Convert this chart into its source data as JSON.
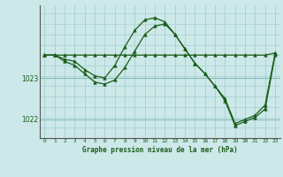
{
  "title": "Graphe pression niveau de la mer (hPa)",
  "bg_color": "#cce8e8",
  "grid_color_v": "#aad4d4",
  "grid_color_h": "#aad4d4",
  "line_color": "#1a5c1a",
  "marker_color": "#1a5c1a",
  "xlim": [
    -0.5,
    23.5
  ],
  "ylim": [
    1021.55,
    1024.75
  ],
  "yticks": [
    1022,
    1023
  ],
  "xticks": [
    0,
    1,
    2,
    3,
    4,
    5,
    6,
    7,
    8,
    9,
    10,
    11,
    12,
    13,
    14,
    15,
    16,
    17,
    18,
    19,
    20,
    21,
    22,
    23
  ],
  "line1_x": [
    0,
    1,
    2,
    3,
    4,
    5,
    6,
    7,
    8,
    9,
    10,
    11,
    12,
    13,
    14,
    15,
    16,
    17,
    18,
    19,
    20,
    21,
    22,
    23
  ],
  "line1_y": [
    1023.55,
    1023.55,
    1023.55,
    1023.55,
    1023.55,
    1023.55,
    1023.55,
    1023.55,
    1023.55,
    1023.55,
    1023.55,
    1023.55,
    1023.55,
    1023.55,
    1023.55,
    1023.55,
    1023.55,
    1023.55,
    1023.55,
    1023.55,
    1023.55,
    1023.55,
    1023.55,
    1023.6
  ],
  "line2_x": [
    0,
    1,
    2,
    3,
    4,
    5,
    6,
    7,
    8,
    9,
    10,
    11,
    12,
    13,
    14,
    15,
    16,
    17,
    18,
    19,
    20,
    21,
    22,
    23
  ],
  "line2_y": [
    1023.55,
    1023.55,
    1023.45,
    1023.4,
    1023.2,
    1023.05,
    1023.0,
    1023.3,
    1023.75,
    1024.15,
    1024.4,
    1024.45,
    1024.35,
    1024.05,
    1023.7,
    1023.35,
    1023.1,
    1022.8,
    1022.5,
    1021.9,
    1022.0,
    1022.1,
    1022.35,
    1023.6
  ],
  "line3_x": [
    0,
    1,
    2,
    3,
    4,
    5,
    6,
    7,
    8,
    9,
    10,
    11,
    12,
    13,
    14,
    15,
    16,
    17,
    18,
    19,
    20,
    21,
    22,
    23
  ],
  "line3_y": [
    1023.55,
    1023.55,
    1023.4,
    1023.3,
    1023.1,
    1022.9,
    1022.85,
    1022.95,
    1023.25,
    1023.65,
    1024.05,
    1024.25,
    1024.3,
    1024.05,
    1023.7,
    1023.35,
    1023.1,
    1022.8,
    1022.45,
    1021.85,
    1021.95,
    1022.05,
    1022.25,
    1023.55
  ]
}
